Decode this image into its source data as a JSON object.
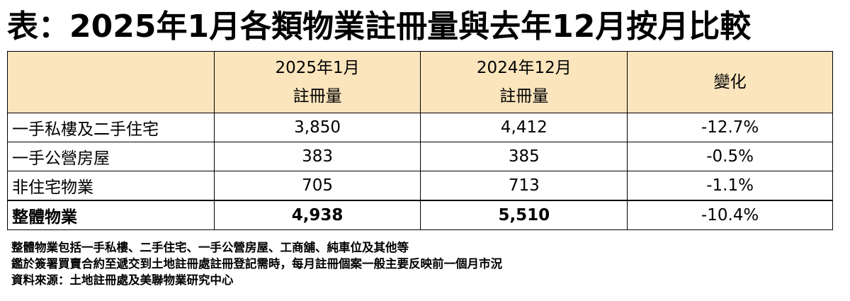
{
  "title": "表：2025年1月各類物業註冊量與去年12月按月比較",
  "table": {
    "headers": {
      "label": "",
      "jan2025_line1": "2025年1月",
      "jan2025_line2": "註冊量",
      "dec2024_line1": "2024年12月",
      "dec2024_line2": "註冊量",
      "change": "變化"
    },
    "rows": [
      {
        "label": "一手私樓及二手住宅",
        "jan2025": "3,850",
        "dec2024": "4,412",
        "change": "-12.7%"
      },
      {
        "label": "一手公營房屋",
        "jan2025": "383",
        "dec2024": "385",
        "change": "-0.5%"
      },
      {
        "label": "非住宅物業",
        "jan2025": "705",
        "dec2024": "713",
        "change": "-1.1%"
      },
      {
        "label": "整體物業",
        "jan2025": "4,938",
        "dec2024": "5,510",
        "change": "-10.4%"
      }
    ]
  },
  "notes": [
    "整體物業包括一手私樓、二手住宅、一手公營房屋、工商舖、純車位及其他等",
    "鑑於簽署買賣合約至遞交到土地註冊處註冊登記需時，每月註冊個案一般主要反映前一個月市況",
    "資料來源：土地註冊處及美聯物業研究中心"
  ],
  "colors": {
    "header_background": "#fbe5bd",
    "border": "#000000"
  }
}
